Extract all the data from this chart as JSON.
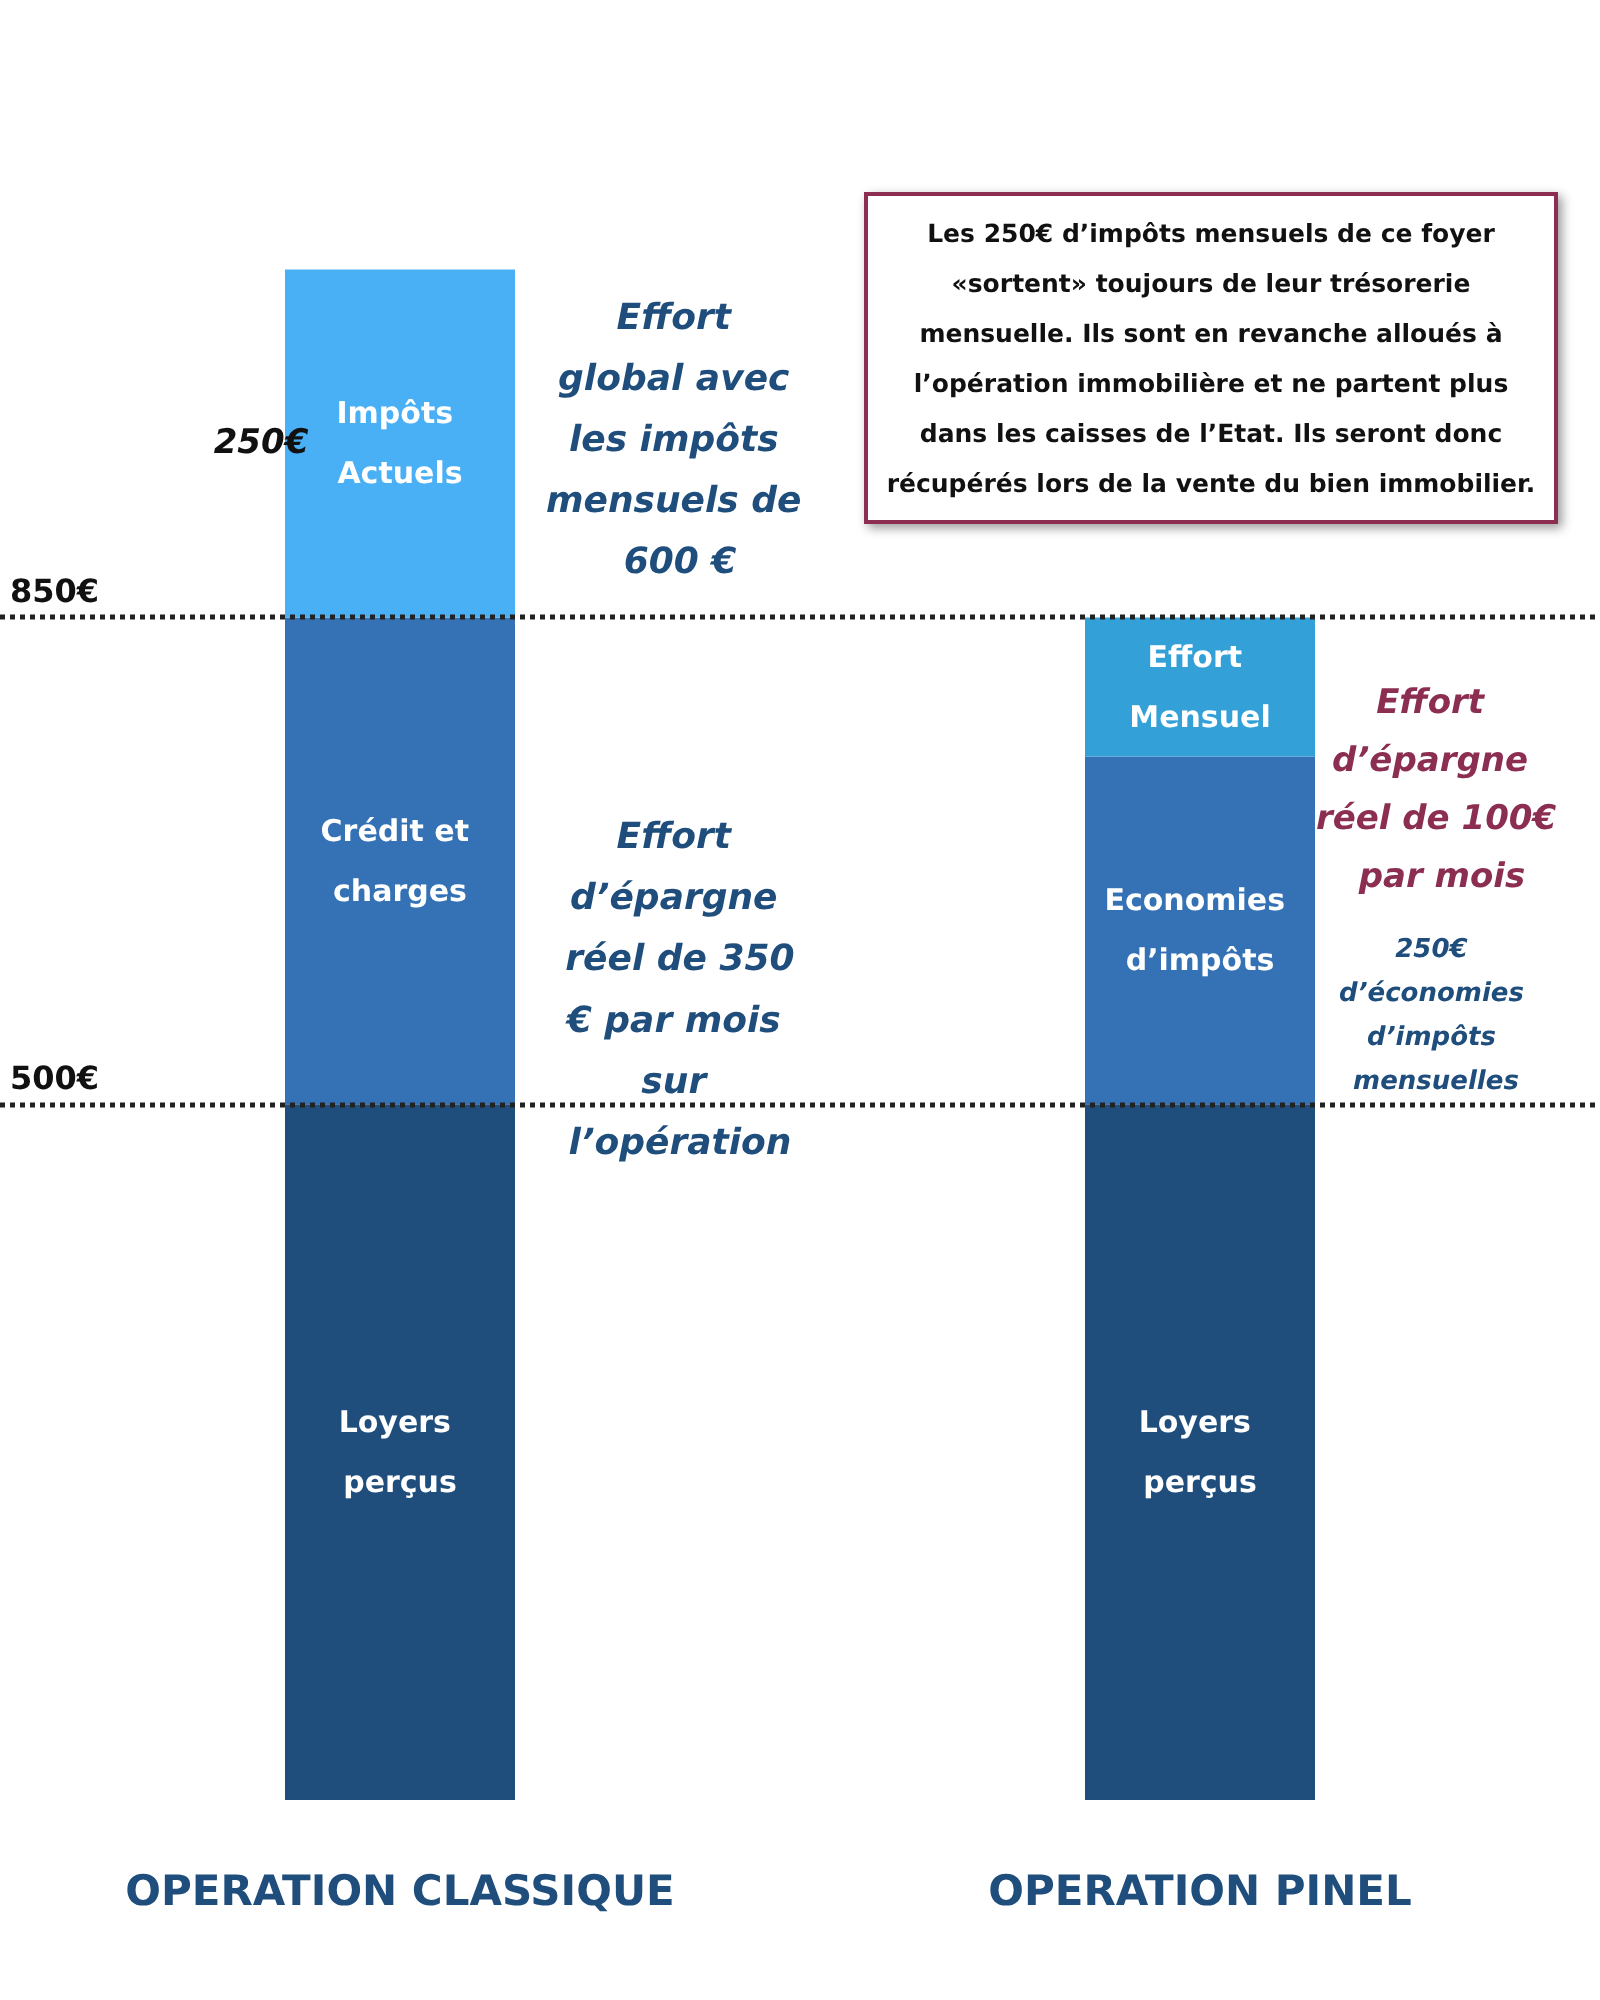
{
  "chart_data": {
    "type": "bar",
    "stacked": true,
    "categories": [
      "OPERATION CLASSIQUE",
      "OPERATION PINEL"
    ],
    "series": [
      {
        "name": "Loyers perçus",
        "color": "#1f4e7d",
        "values": [
          500,
          500
        ]
      },
      {
        "name": "Crédit et charges",
        "color": "#3572b5",
        "values": [
          350,
          null
        ]
      },
      {
        "name": "Economies d’impôts",
        "color": "#3572b5",
        "values": [
          null,
          250
        ]
      },
      {
        "name": "Effort Mensuel",
        "color": "#33a0d8",
        "values": [
          null,
          100
        ]
      },
      {
        "name": "Impôts Actuels",
        "color": "#4ab0f5",
        "values": [
          250,
          null
        ],
        "value_labels": [
          "250€",
          null
        ]
      }
    ],
    "ylim": [
      0,
      1150
    ],
    "grid": false,
    "legend": false,
    "ref_lines": [
      {
        "axis": "y",
        "value": 500,
        "label": "500€",
        "line_style": "dotted",
        "color": "#222222"
      },
      {
        "axis": "y",
        "value": 850,
        "label": "850€",
        "line_style": "dotted",
        "color": "#222222"
      }
    ],
    "annotations": [
      "Effort global avec les impôts mensuels de 600 €",
      "Effort d’épargne réel de 350€ par mois sur l’opération",
      "Effort d’épargne réel de 100€ par mois",
      "250€ d’économies d’impôts mensuelles",
      "Les 250€ d’impôts mensuels de ce foyer «sortent» toujours de leur trésorerie mensuelle. Ils sont en revanche alloués à l’opération immobilière et ne partent plus dans les caisses de l’Etat. Ils seront donc récupérés lors de la vente du bien immobilier."
    ]
  }
}
